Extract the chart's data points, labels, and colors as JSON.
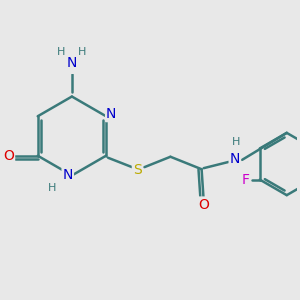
{
  "bg_color": "#e8e8e8",
  "bond_color": "#3a7a7a",
  "bond_width": 1.8,
  "atom_colors": {
    "N": "#0000cc",
    "O": "#dd0000",
    "S": "#bbaa00",
    "F": "#cc00cc",
    "H": "#3a7a7a",
    "C": "#3a7a7a"
  },
  "font_size": 10,
  "figsize": [
    3.0,
    3.0
  ],
  "dpi": 100
}
